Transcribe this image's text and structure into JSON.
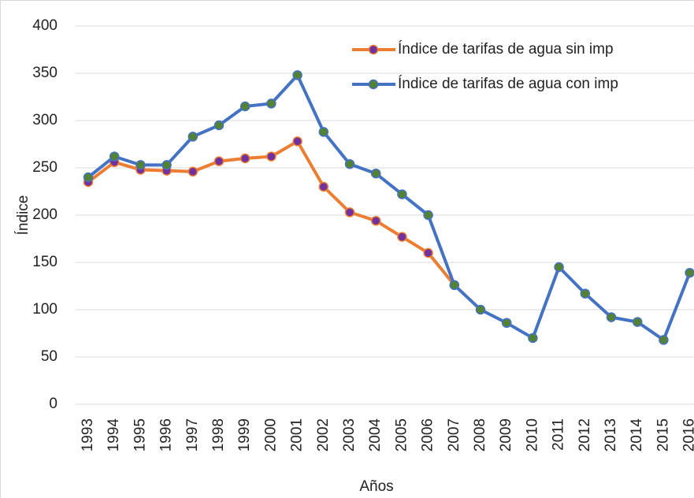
{
  "chart_data": {
    "type": "line",
    "x_label": "Años",
    "y_label": "Índice",
    "categories": [
      "1993",
      "1994",
      "1995",
      "1996",
      "1997",
      "1998",
      "1999",
      "2000",
      "2001",
      "2002",
      "2003",
      "2004",
      "2005",
      "2006",
      "2007",
      "2008",
      "2009",
      "2010",
      "2011",
      "2012",
      "2013",
      "2014",
      "2015",
      "2016"
    ],
    "series": [
      {
        "name": "Índice de tarifas de agua sin imp",
        "color": "#ed7d31",
        "marker_color": "#7030a0",
        "values": [
          235,
          256,
          248,
          247,
          246,
          257,
          260,
          262,
          278,
          230,
          203,
          194,
          177,
          160,
          126,
          null,
          null,
          null,
          null,
          null,
          null,
          null,
          null,
          null
        ]
      },
      {
        "name": "Índice de tarifas de agua con imp",
        "color": "#4472c4",
        "marker_color": "#548235",
        "values": [
          240,
          262,
          253,
          253,
          283,
          295,
          315,
          318,
          348,
          288,
          254,
          244,
          222,
          200,
          126,
          100,
          86,
          70,
          145,
          117,
          92,
          87,
          68,
          139
        ]
      }
    ],
    "ylim": [
      0,
      400
    ],
    "yticks": [
      0,
      50,
      100,
      150,
      200,
      250,
      300,
      350,
      400
    ],
    "grid": true,
    "legend": "top-right"
  }
}
